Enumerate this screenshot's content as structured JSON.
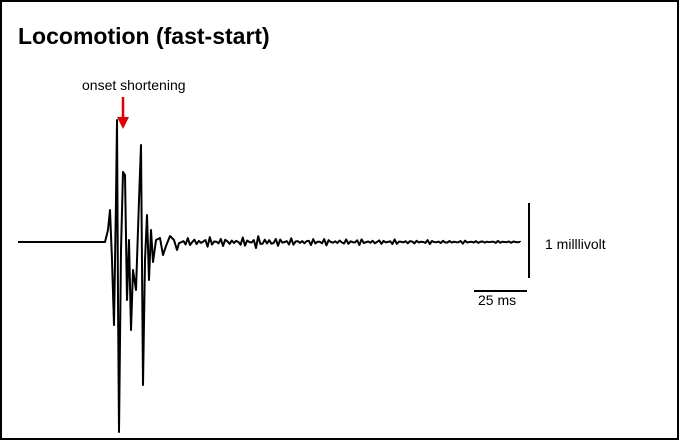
{
  "title": "Locomotion (fast-start)",
  "annotation": "onset shortening",
  "scale_bars": {
    "voltage": "1 milllivolt",
    "time": "25 ms"
  }
}
